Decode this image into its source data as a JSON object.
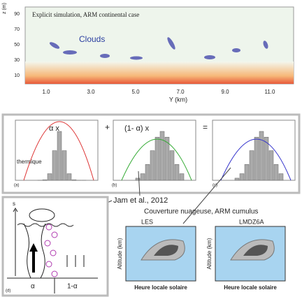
{
  "top_panel": {
    "title": "Explicit simulation, ARM continental case",
    "annotation": "Clouds",
    "y_axis_label": "z (m)",
    "y_ticks": [
      "90",
      "70",
      "50",
      "30",
      "10"
    ],
    "x_ticks": [
      "1.0",
      "3.0",
      "5.0",
      "7.0",
      "9.0",
      "11.0"
    ],
    "x_axis_label": "Y (km)"
  },
  "middle_panel": {
    "panels": [
      {
        "formula": "α x",
        "label": "thermique",
        "letter": "(a)"
      },
      {
        "formula": "(1- α) x",
        "letter": "(b)"
      },
      {
        "letter": "(c)"
      }
    ],
    "operators": [
      "+",
      "="
    ]
  },
  "citation": "Jam et al., 2012",
  "schematic": {
    "axis": "s",
    "columns": [
      "α",
      "1-α"
    ],
    "letter": "(d)"
  },
  "cloud_cover": {
    "title": "Couverture nuageuse, ARM cumulus",
    "panels": [
      {
        "name": "LES",
        "y_axis_label": "Altitude (km)",
        "x_axis_label": "Heure locale solaire"
      },
      {
        "name": "LMDZ6A",
        "y_axis_label": "Altitude (km)",
        "x_axis_label": "Heure locale solaire"
      }
    ]
  }
}
